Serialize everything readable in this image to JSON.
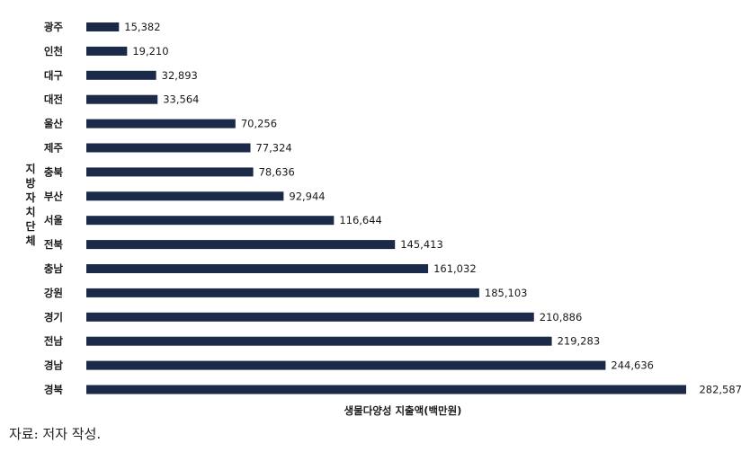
{
  "chart_data": {
    "type": "bar",
    "orientation": "horizontal",
    "categories": [
      "광주",
      "인천",
      "대구",
      "대전",
      "울산",
      "제주",
      "충북",
      "부산",
      "서울",
      "전북",
      "충남",
      "강원",
      "경기",
      "전남",
      "경남",
      "경북"
    ],
    "values": [
      15382,
      19210,
      32893,
      33564,
      70256,
      77324,
      78636,
      92944,
      116644,
      145413,
      161032,
      185103,
      210886,
      219283,
      244636,
      282587
    ],
    "value_labels": [
      "15,382",
      "19,210",
      "32,893",
      "33,564",
      "70,256",
      "77,324",
      "78,636",
      "92,944",
      "116,644",
      "145,413",
      "161,032",
      "185,103",
      "210,886",
      "219,283",
      "244,636",
      "282,587"
    ],
    "xlabel": "생물다양성 지출액(백만원)",
    "ylabel": [
      "지",
      "방",
      "자",
      "치",
      "단",
      "체"
    ],
    "xlim": [
      0,
      282587
    ],
    "bar_color": "#1b2a48",
    "grid": false
  },
  "source": "자료: 저자 작성."
}
